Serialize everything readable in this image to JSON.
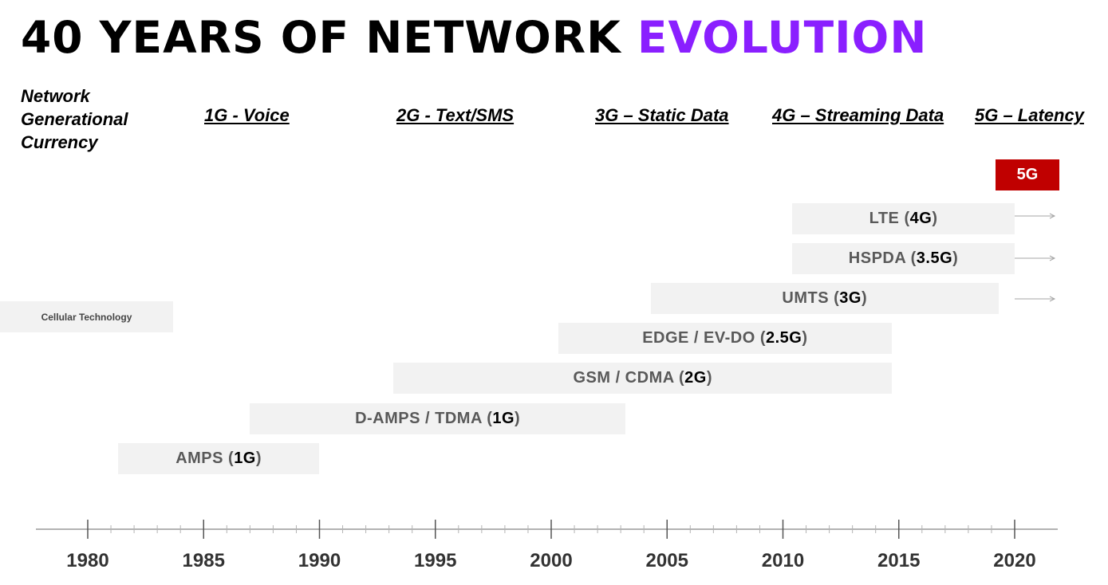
{
  "title": {
    "main": "40 YEARS OF NETWORK",
    "accent": "EVOLUTION"
  },
  "generation_label": "Network\nGenerational\nCurrency",
  "generations": [
    {
      "label": "1G - Voice"
    },
    {
      "label": "2G - Text/SMS"
    },
    {
      "label": "3G – Static Data"
    },
    {
      "label": "4G – Streaming Data"
    },
    {
      "label": "5G – Latency"
    }
  ],
  "technology_label": "Cellular Technology",
  "technologies": [
    {
      "name": "AMPS (",
      "gen": "1G",
      "close": ")",
      "start": 1981.3,
      "end": 1990
    },
    {
      "name": "D-AMPS / TDMA (",
      "gen": "1G",
      "close": ")",
      "start": 1987,
      "end": 2003.2
    },
    {
      "name": "GSM / CDMA (",
      "gen": "2G",
      "close": ")",
      "start": 1993.2,
      "end": 2014.7
    },
    {
      "name": "EDGE / EV-DO (",
      "gen": "2.5G",
      "close": ")",
      "start": 2000.3,
      "end": 2014.7
    },
    {
      "name": "UMTS (",
      "gen": "3G",
      "close": ")",
      "start": 2004.3,
      "end": 2019.3,
      "ongoing": true
    },
    {
      "name": "HSPDA (",
      "gen": "3.5G",
      "close": ")",
      "start": 2010.4,
      "end": 2020,
      "ongoing": true
    },
    {
      "name": "LTE (",
      "gen": "4G",
      "close": ")",
      "start": 2010.4,
      "end": 2020,
      "ongoing": true
    }
  ],
  "badge": {
    "label": "5G",
    "color": "#c00000"
  },
  "accent_color": "#8a1fff",
  "timeline": {
    "years": [
      "1980",
      "1985",
      "1990",
      "1995",
      "2000",
      "2005",
      "2010",
      "2015",
      "2020"
    ]
  }
}
